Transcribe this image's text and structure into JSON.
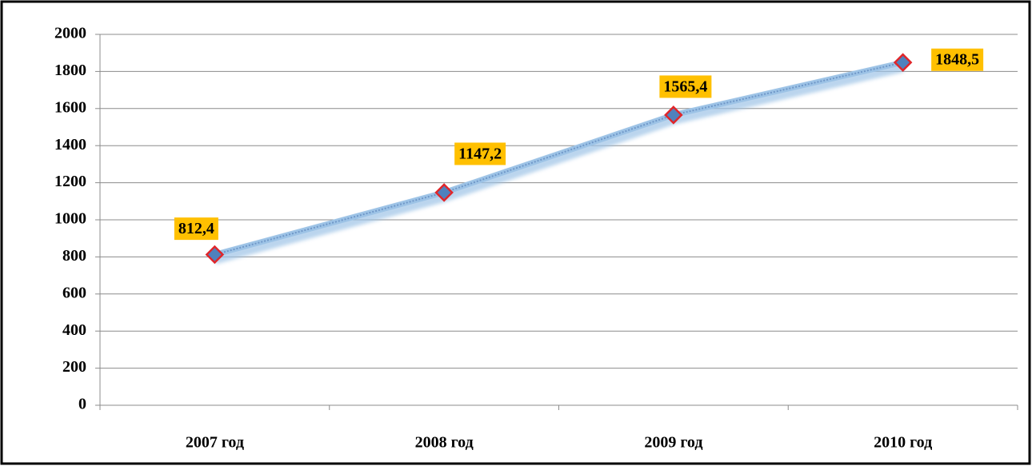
{
  "chart_data": {
    "type": "line",
    "categories": [
      "2007 год",
      "2008 год",
      "2009 год",
      "2010 год"
    ],
    "values": [
      812.4,
      1147.2,
      1565.4,
      1848.5
    ],
    "value_labels": [
      "812,4",
      "1147,2",
      "1565,4",
      "1848,5"
    ],
    "color": "#9dc3e6",
    "ylim": [
      0,
      2000
    ],
    "yticks": [
      0,
      200,
      400,
      600,
      800,
      1000,
      1200,
      1400,
      1600,
      1800,
      2000
    ],
    "grid": true
  }
}
